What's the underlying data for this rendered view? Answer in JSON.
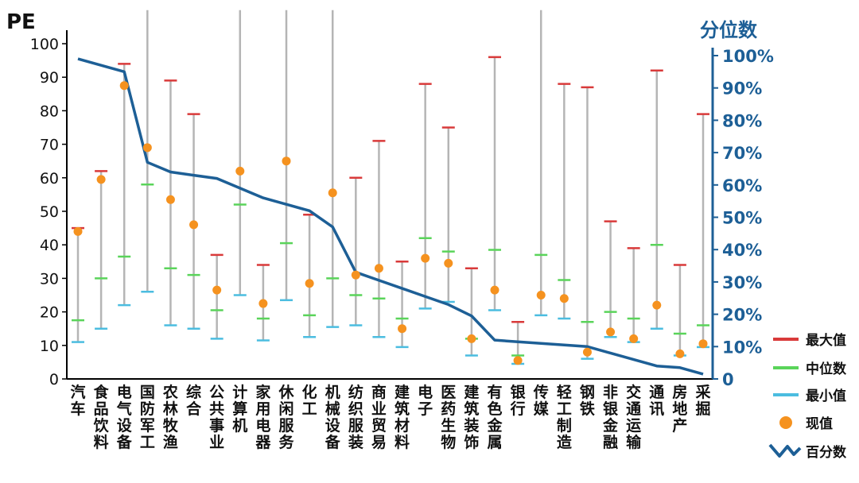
{
  "chart_data": {
    "type": "line",
    "ylabel": "PE",
    "y2label": "分位数",
    "ylim": [
      0,
      100
    ],
    "y2lim": [
      0,
      100
    ],
    "yticks": [
      0,
      10,
      20,
      30,
      40,
      50,
      60,
      70,
      80,
      90,
      100
    ],
    "y2ticks": [
      "0",
      "10%",
      "20%",
      "30%",
      "40%",
      "50%",
      "60%",
      "70%",
      "80%",
      "90%",
      "100%"
    ],
    "legend_position": "right",
    "categories": [
      "汽车",
      "食品饮料",
      "电气设备",
      "国防军工",
      "农林牧渔",
      "综合",
      "公共事业",
      "计算机",
      "家用电器",
      "休闲服务",
      "化工",
      "机械设备",
      "纺织服装",
      "商业贸易",
      "建筑材料",
      "电子",
      "医药生物",
      "建筑装饰",
      "有色金属",
      "银行",
      "传媒",
      "轻工制造",
      "钢铁",
      "非银金融",
      "交通运输",
      "通讯",
      "房地产",
      "采掘"
    ],
    "series": [
      {
        "name": "最大值",
        "color": "#d93a3a",
        "values": [
          45,
          62,
          94,
          110,
          89,
          79,
          37,
          110,
          34,
          110,
          49,
          110,
          60,
          71,
          35,
          88,
          75,
          33,
          96,
          17,
          110,
          88,
          87,
          47,
          39,
          92,
          34,
          79
        ]
      },
      {
        "name": "中位数",
        "color": "#5ad45a",
        "values": [
          17.5,
          30,
          36.5,
          58,
          33,
          31,
          20.5,
          52,
          18,
          40.5,
          19,
          30,
          25,
          24,
          18,
          42,
          38,
          12,
          38.5,
          7,
          37,
          29.5,
          17,
          20,
          18,
          40,
          13.5,
          16
        ]
      },
      {
        "name": "最小值",
        "color": "#4bbde0",
        "values": [
          11,
          15,
          22,
          26,
          16,
          15,
          12,
          25,
          11.5,
          23.5,
          12.5,
          15.5,
          16,
          12.5,
          9.5,
          21,
          23,
          7,
          20.5,
          4.5,
          19,
          18,
          6,
          12.5,
          11,
          15,
          7,
          9.5
        ]
      },
      {
        "name": "现值",
        "color": "#f5921f",
        "values": [
          44,
          59.5,
          87.5,
          69,
          53.5,
          46,
          26.5,
          62,
          22.5,
          65,
          28.5,
          55.5,
          31,
          33,
          15,
          36,
          34.5,
          12,
          26.5,
          5.5,
          25,
          24,
          8,
          14,
          12,
          22,
          7.5,
          10.5
        ]
      },
      {
        "name": "百分数",
        "color": "#1d5f96",
        "values": [
          99,
          97,
          95,
          67,
          64,
          63,
          62,
          59,
          56,
          54,
          52,
          47,
          33,
          30.5,
          28,
          25.5,
          23,
          19.5,
          12,
          11.5,
          11,
          10.5,
          10,
          8,
          6,
          4,
          3.5,
          1.5
        ]
      }
    ]
  }
}
